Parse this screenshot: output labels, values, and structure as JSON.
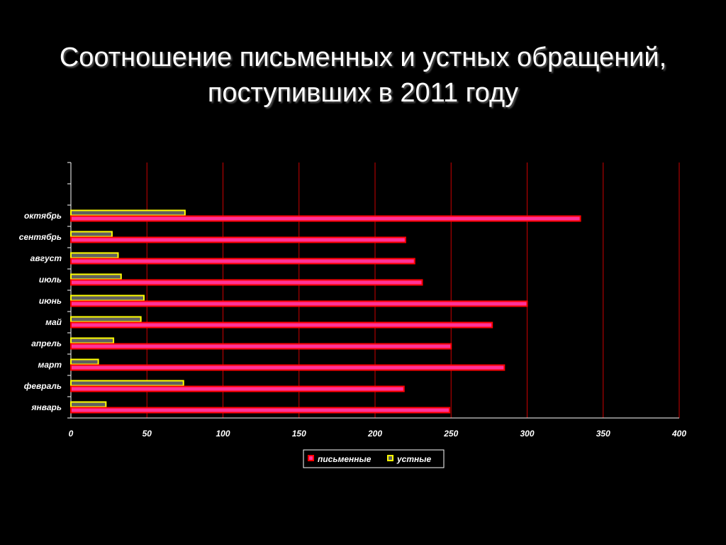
{
  "title": {
    "line1": "Соотношение письменных и устных обращений,",
    "line2": "поступивших в 2011 году"
  },
  "chart_data": {
    "type": "bar",
    "orientation": "horizontal",
    "title": "Соотношение письменных и устных обращений, поступивших в 2011 году",
    "categories": [
      "январь",
      "февраль",
      "март",
      "апрель",
      "май",
      "июнь",
      "июль",
      "август",
      "сентябрь",
      "октябрь",
      "",
      ""
    ],
    "series": [
      {
        "name": "письменные",
        "values": [
          249,
          219,
          285,
          250,
          277,
          300,
          231,
          226,
          220,
          335,
          null,
          null
        ],
        "fill": "#ff3399",
        "stroke": "#ff0000"
      },
      {
        "name": "устные",
        "values": [
          23,
          74,
          18,
          28,
          46,
          48,
          33,
          31,
          27,
          75,
          null,
          null
        ],
        "fill": "#606060",
        "stroke": "#ffff00"
      }
    ],
    "xticks": [
      0,
      50,
      100,
      150,
      200,
      250,
      300,
      350,
      400
    ],
    "xlim": [
      0,
      400
    ],
    "grid": true,
    "grid_color": "#cc0000",
    "legend": "bottom"
  }
}
